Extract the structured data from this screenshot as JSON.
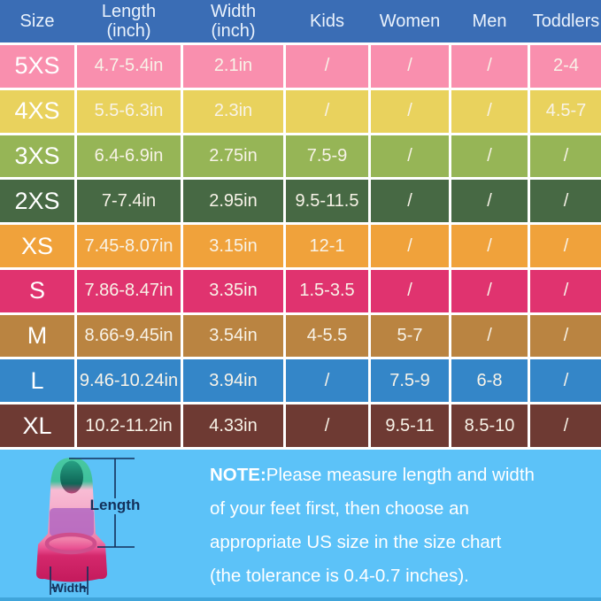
{
  "chart_data": {
    "type": "table",
    "title": "Swim fin US size chart",
    "columns": [
      "Size",
      "Length (inch)",
      "Width (inch)",
      "Kids",
      "Women",
      "Men",
      "Toddlers"
    ],
    "rows": [
      [
        "5XS",
        "4.7-5.4in",
        "2.1in",
        "/",
        "/",
        "/",
        "2-4"
      ],
      [
        "4XS",
        "5.5-6.3in",
        "2.3in",
        "/",
        "/",
        "/",
        "4.5-7"
      ],
      [
        "3XS",
        "6.4-6.9in",
        "2.75in",
        "7.5-9",
        "/",
        "/",
        "/"
      ],
      [
        "2XS",
        "7-7.4in",
        "2.95in",
        "9.5-11.5",
        "/",
        "/",
        "/"
      ],
      [
        "XS",
        "7.45-8.07in",
        "3.15in",
        "12-1",
        "/",
        "/",
        "/"
      ],
      [
        "S",
        "7.86-8.47in",
        "3.35in",
        "1.5-3.5",
        "/",
        "/",
        "/"
      ],
      [
        "M",
        "8.66-9.45in",
        "3.54in",
        "4-5.5",
        "5-7",
        "/",
        "/"
      ],
      [
        "L",
        "9.46-10.24in",
        "3.94in",
        "/",
        "7.5-9",
        "6-8",
        "/"
      ],
      [
        "XL",
        "10.2-11.2in",
        "4.33in",
        "/",
        "9.5-11",
        "8.5-10",
        "/"
      ]
    ]
  },
  "table": {
    "header_labels": [
      "Size",
      "Length\n(inch)",
      "Width\n(inch)",
      "Kids",
      "Women",
      "Men",
      "Toddlers"
    ],
    "rows": [
      {
        "size": "5XS",
        "length": "4.7-5.4in",
        "width": "2.1in",
        "kids": "/",
        "women": "/",
        "men": "/",
        "toddlers": "2-4",
        "color": "#f98fae"
      },
      {
        "size": "4XS",
        "length": "5.5-6.3in",
        "width": "2.3in",
        "kids": "/",
        "women": "/",
        "men": "/",
        "toddlers": "4.5-7",
        "color": "#e9d25d"
      },
      {
        "size": "3XS",
        "length": "6.4-6.9in",
        "width": "2.75in",
        "kids": "7.5-9",
        "women": "/",
        "men": "/",
        "toddlers": "/",
        "color": "#96b556"
      },
      {
        "size": "2XS",
        "length": "7-7.4in",
        "width": "2.95in",
        "kids": "9.5-11.5",
        "women": "/",
        "men": "/",
        "toddlers": "/",
        "color": "#476944"
      },
      {
        "size": "XS",
        "length": "7.45-8.07in",
        "width": "3.15in",
        "kids": "12-1",
        "women": "/",
        "men": "/",
        "toddlers": "/",
        "color": "#f0a23b"
      },
      {
        "size": "S",
        "length": "7.86-8.47in",
        "width": "3.35in",
        "kids": "1.5-3.5",
        "women": "/",
        "men": "/",
        "toddlers": "/",
        "color": "#e0336f"
      },
      {
        "size": "M",
        "length": "8.66-9.45in",
        "width": "3.54in",
        "kids": "4-5.5",
        "women": "5-7",
        "men": "/",
        "toddlers": "/",
        "color": "#ba8441"
      },
      {
        "size": "L",
        "length": "9.46-10.24in",
        "width": "3.94in",
        "kids": "/",
        "women": "7.5-9",
        "men": "6-8",
        "toddlers": "/",
        "color": "#3486c8"
      },
      {
        "size": "XL",
        "length": "10.2-11.2in",
        "width": "4.33in",
        "kids": "/",
        "women": "9.5-11",
        "men": "8.5-10",
        "toddlers": "/",
        "color": "#6e3a33"
      }
    ]
  },
  "diagram": {
    "length_label": "Length",
    "width_label": "Width"
  },
  "note": {
    "prefix": "NOTE:",
    "line1": "Please measure length and width",
    "line2": "of your feet first, then choose an",
    "line3": "appropriate US size in the size chart",
    "line4": "(the tolerance is 0.4-0.7 inches)."
  },
  "colors": {
    "header_bg": "#3a6db5",
    "grid_line": "#ffffff",
    "bottom_bg": "#5cc2f8",
    "measure_label": "#13305a",
    "note_text": "#ffffff"
  }
}
